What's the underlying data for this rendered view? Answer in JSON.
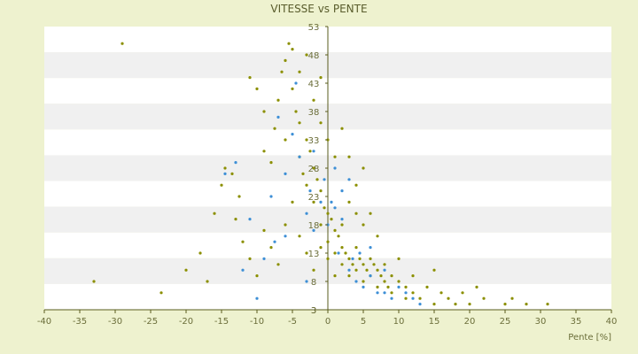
{
  "chart_data": {
    "type": "scatter",
    "title": "VITESSE vs PENTE",
    "xlabel": "Pente [%]",
    "ylabel": "",
    "xlim": [
      -40,
      40
    ],
    "ylim": [
      3,
      53
    ],
    "x_ticks": [
      "-40",
      "-35",
      "-30",
      "-25",
      "-20",
      "-15",
      "-10",
      "-5",
      "0",
      "5",
      "10",
      "15",
      "20",
      "25",
      "30",
      "35",
      "40"
    ],
    "y_ticks": [
      "3",
      "3",
      "8",
      "13",
      "18",
      "23",
      "28",
      "33",
      "38",
      "43",
      "48",
      "53"
    ],
    "grid": "horizontal alternating bands",
    "legend": "none",
    "series_colors": [
      "#8b8f00",
      "#3d8fd6"
    ],
    "series": [
      {
        "points": [
          [
            -29,
            50
          ],
          [
            -33,
            8
          ],
          [
            -23.5,
            6
          ],
          [
            -14.5,
            28
          ],
          [
            -13.5,
            27
          ],
          [
            -12.5,
            23
          ],
          [
            -11,
            44
          ],
          [
            -10,
            42
          ],
          [
            -9,
            38
          ],
          [
            -9,
            31
          ],
          [
            -8,
            29
          ],
          [
            -7.5,
            35
          ],
          [
            -7,
            40
          ],
          [
            -6.5,
            45
          ],
          [
            -6,
            47
          ],
          [
            -5.5,
            50
          ],
          [
            -5,
            49
          ],
          [
            -5,
            42
          ],
          [
            -4.5,
            38
          ],
          [
            -4,
            36
          ],
          [
            -4,
            30
          ],
          [
            -3.5,
            27
          ],
          [
            -3,
            33
          ],
          [
            -3,
            25
          ],
          [
            -2.5,
            31
          ],
          [
            -2,
            28
          ],
          [
            -2,
            22
          ],
          [
            -1.5,
            26
          ],
          [
            -1,
            24
          ],
          [
            -1,
            18
          ],
          [
            -0.5,
            21
          ],
          [
            0,
            20
          ],
          [
            0,
            15
          ],
          [
            0.5,
            19
          ],
          [
            1,
            17
          ],
          [
            1,
            13
          ],
          [
            1.5,
            16
          ],
          [
            2,
            14
          ],
          [
            2,
            11
          ],
          [
            2.5,
            13
          ],
          [
            3,
            12
          ],
          [
            3,
            9
          ],
          [
            3.5,
            11
          ],
          [
            4,
            10
          ],
          [
            4,
            14
          ],
          [
            4.5,
            12
          ],
          [
            5,
            11
          ],
          [
            5,
            8
          ],
          [
            5.5,
            10
          ],
          [
            6,
            12
          ],
          [
            6,
            9
          ],
          [
            6.5,
            11
          ],
          [
            7,
            10
          ],
          [
            7,
            7
          ],
          [
            7.5,
            9
          ],
          [
            8,
            8
          ],
          [
            8,
            11
          ],
          [
            8.5,
            7
          ],
          [
            9,
            9
          ],
          [
            9,
            6
          ],
          [
            10,
            8
          ],
          [
            10,
            12
          ],
          [
            11,
            7
          ],
          [
            11,
            5
          ],
          [
            12,
            6
          ],
          [
            12,
            9
          ],
          [
            13,
            5
          ],
          [
            14,
            7
          ],
          [
            15,
            4
          ],
          [
            15,
            10
          ],
          [
            16,
            6
          ],
          [
            17,
            5
          ],
          [
            18,
            4
          ],
          [
            19,
            6
          ],
          [
            20,
            4
          ],
          [
            21,
            7
          ],
          [
            22,
            5
          ],
          [
            25,
            4
          ],
          [
            26,
            5
          ],
          [
            28,
            4
          ],
          [
            31,
            4
          ],
          [
            -16,
            20
          ],
          [
            -15,
            25
          ],
          [
            -18,
            13
          ],
          [
            -20,
            10
          ],
          [
            -17,
            8
          ],
          [
            -13,
            19
          ],
          [
            -12,
            15
          ],
          [
            -11,
            12
          ],
          [
            -10,
            9
          ],
          [
            -9,
            17
          ],
          [
            -8,
            14
          ],
          [
            -7,
            11
          ],
          [
            -6,
            18
          ],
          [
            -5,
            22
          ],
          [
            -4,
            16
          ],
          [
            -3,
            13
          ],
          [
            -2,
            10
          ],
          [
            -1,
            14
          ],
          [
            0,
            12
          ],
          [
            1,
            9
          ],
          [
            2,
            18
          ],
          [
            3,
            22
          ],
          [
            4,
            25
          ],
          [
            5,
            28
          ],
          [
            6,
            20
          ],
          [
            7,
            16
          ],
          [
            -6,
            33
          ],
          [
            -4,
            45
          ],
          [
            -2,
            40
          ],
          [
            -1,
            36
          ],
          [
            0,
            33
          ],
          [
            1,
            30
          ],
          [
            2,
            35
          ],
          [
            3,
            30
          ],
          [
            4,
            20
          ],
          [
            5,
            18
          ],
          [
            -3,
            48
          ],
          [
            -1,
            44
          ]
        ]
      },
      {
        "points": [
          [
            -14.5,
            27
          ],
          [
            -13,
            29
          ],
          [
            -11,
            19
          ],
          [
            -10,
            5
          ],
          [
            -9,
            12
          ],
          [
            -8,
            23
          ],
          [
            -7,
            37
          ],
          [
            -6,
            27
          ],
          [
            -5,
            34
          ],
          [
            -4.5,
            43
          ],
          [
            -4,
            30
          ],
          [
            -3,
            20
          ],
          [
            -2.5,
            24
          ],
          [
            -2,
            17
          ],
          [
            -1,
            22
          ],
          [
            -0.5,
            26
          ],
          [
            0,
            18
          ],
          [
            0.5,
            22
          ],
          [
            1,
            21
          ],
          [
            1.5,
            13
          ],
          [
            2,
            19
          ],
          [
            3,
            10
          ],
          [
            3.5,
            12
          ],
          [
            4,
            8
          ],
          [
            4.5,
            13
          ],
          [
            5,
            7
          ],
          [
            6,
            9
          ],
          [
            7,
            6
          ],
          [
            8,
            10
          ],
          [
            9,
            5
          ],
          [
            10,
            7
          ],
          [
            11,
            6
          ],
          [
            12,
            5
          ],
          [
            13,
            4
          ],
          [
            -12,
            10
          ],
          [
            -6,
            16
          ],
          [
            -3,
            8
          ],
          [
            2,
            24
          ],
          [
            6,
            14
          ],
          [
            8,
            6
          ],
          [
            -7.5,
            15
          ],
          [
            -2,
            31
          ],
          [
            1,
            28
          ],
          [
            3,
            26
          ]
        ]
      }
    ]
  }
}
